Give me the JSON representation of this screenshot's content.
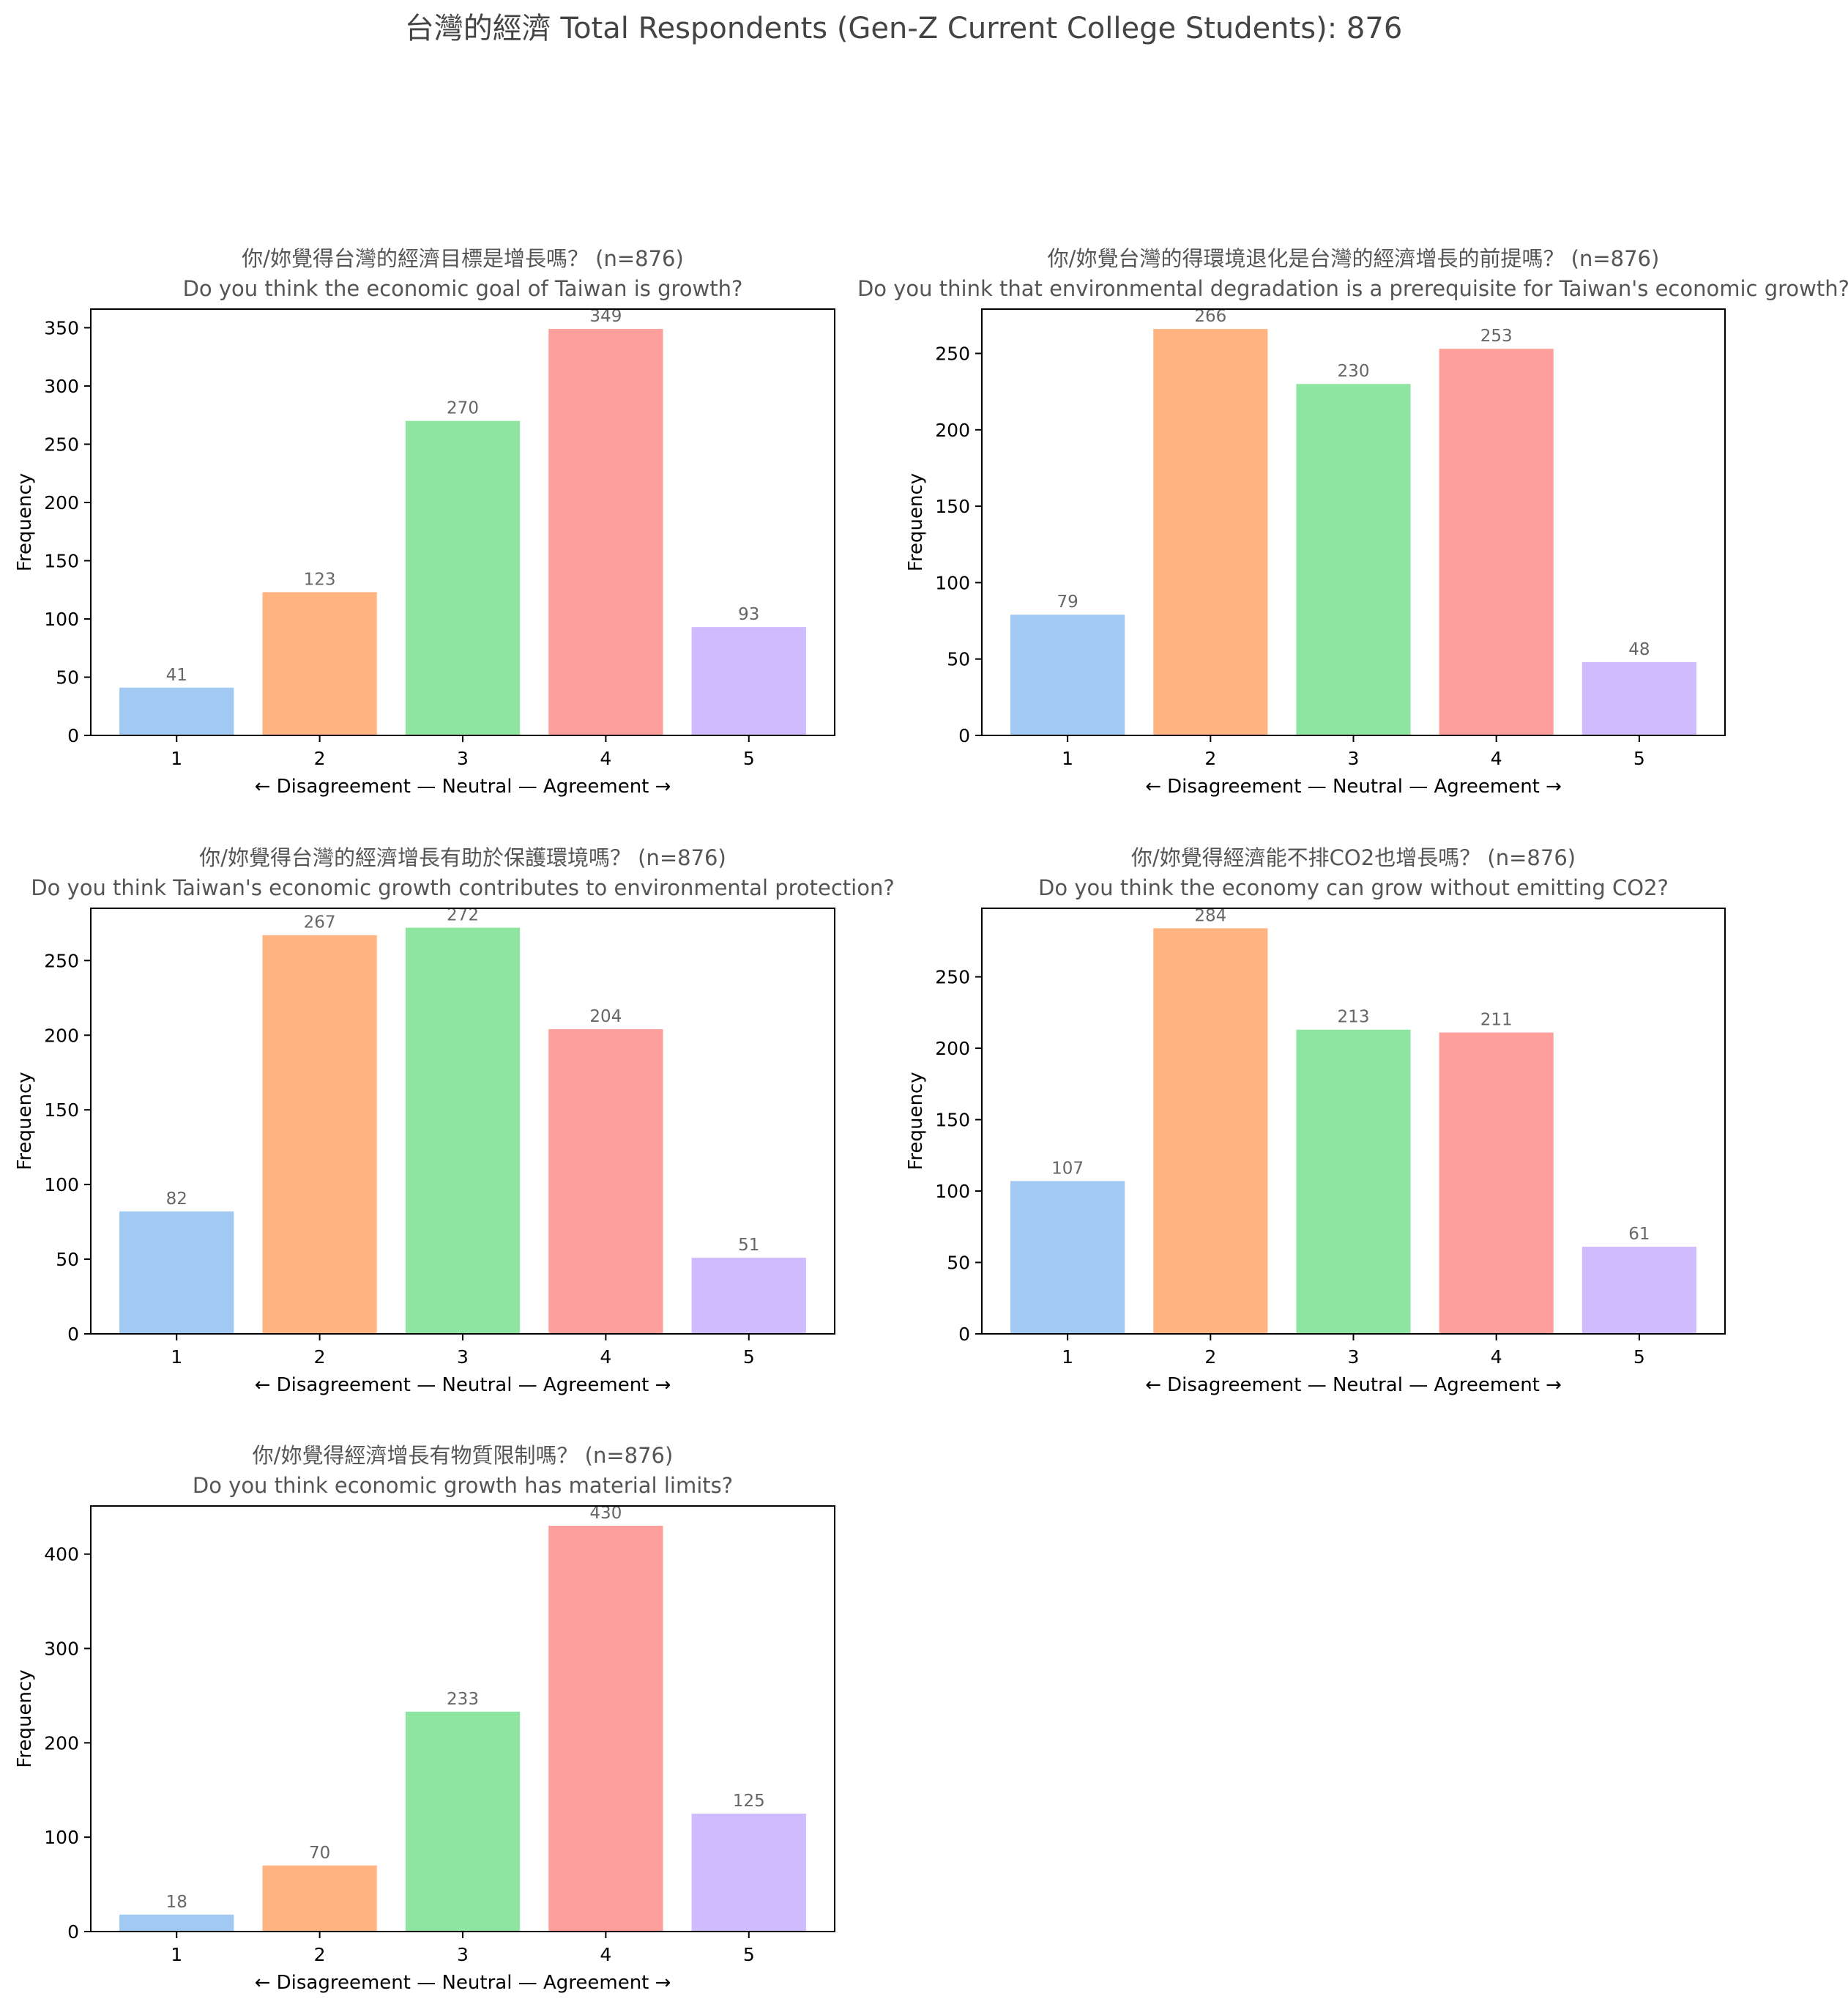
{
  "suptitle": "台灣的經濟  Total Respondents (Gen-Z Current College Students): 876",
  "colors": [
    "#a1c9f4",
    "#ffb482",
    "#8de5a1",
    "#ff9f9b",
    "#d0bbff"
  ],
  "chart_data": [
    {
      "type": "bar",
      "title_zh": "你/妳覺得台灣的經濟目標是增長嗎？ (n=876)",
      "title_en": "Do you think the economic goal of Taiwan is growth?",
      "categories": [
        "1",
        "2",
        "3",
        "4",
        "5"
      ],
      "values": [
        41,
        123,
        270,
        349,
        93
      ],
      "xlabel": "← Disagreement — Neutral — Agreement →",
      "ylabel": "Frequency",
      "ylim": [
        0,
        366
      ],
      "yticks": [
        0,
        50,
        100,
        150,
        200,
        250,
        300,
        350
      ]
    },
    {
      "type": "bar",
      "title_zh": "你/妳覺台灣的得環境退化是台灣的經濟增長的前提嗎？ (n=876)",
      "title_en": "Do you think that environmental degradation is a prerequisite for Taiwan's economic growth?",
      "categories": [
        "1",
        "2",
        "3",
        "4",
        "5"
      ],
      "values": [
        79,
        266,
        230,
        253,
        48
      ],
      "xlabel": "← Disagreement — Neutral — Agreement →",
      "ylabel": "Frequency",
      "ylim": [
        0,
        279
      ],
      "yticks": [
        0,
        50,
        100,
        150,
        200,
        250
      ]
    },
    {
      "type": "bar",
      "title_zh": "你/妳覺得台灣的經濟增長有助於保護環境嗎？ (n=876)",
      "title_en": "Do you think Taiwan's economic growth contributes to environmental protection?",
      "categories": [
        "1",
        "2",
        "3",
        "4",
        "5"
      ],
      "values": [
        82,
        267,
        272,
        204,
        51
      ],
      "xlabel": "← Disagreement — Neutral — Agreement →",
      "ylabel": "Frequency",
      "ylim": [
        0,
        285
      ],
      "yticks": [
        0,
        50,
        100,
        150,
        200,
        250
      ]
    },
    {
      "type": "bar",
      "title_zh": "你/妳覺得經濟能不排CO2也增長嗎？ (n=876)",
      "title_en": "Do you think the economy can grow without emitting CO2?",
      "categories": [
        "1",
        "2",
        "3",
        "4",
        "5"
      ],
      "values": [
        107,
        284,
        213,
        211,
        61
      ],
      "xlabel": "← Disagreement — Neutral — Agreement →",
      "ylabel": "Frequency",
      "ylim": [
        0,
        298
      ],
      "yticks": [
        0,
        50,
        100,
        150,
        200,
        250
      ]
    },
    {
      "type": "bar",
      "title_zh": "你/妳覺得經濟增長有物質限制嗎？ (n=876)",
      "title_en": "Do you think economic growth has material limits?",
      "categories": [
        "1",
        "2",
        "3",
        "4",
        "5"
      ],
      "values": [
        18,
        70,
        233,
        430,
        125
      ],
      "xlabel": "← Disagreement — Neutral — Agreement →",
      "ylabel": "Frequency",
      "ylim": [
        0,
        451
      ],
      "yticks": [
        0,
        100,
        200,
        300,
        400
      ]
    }
  ]
}
